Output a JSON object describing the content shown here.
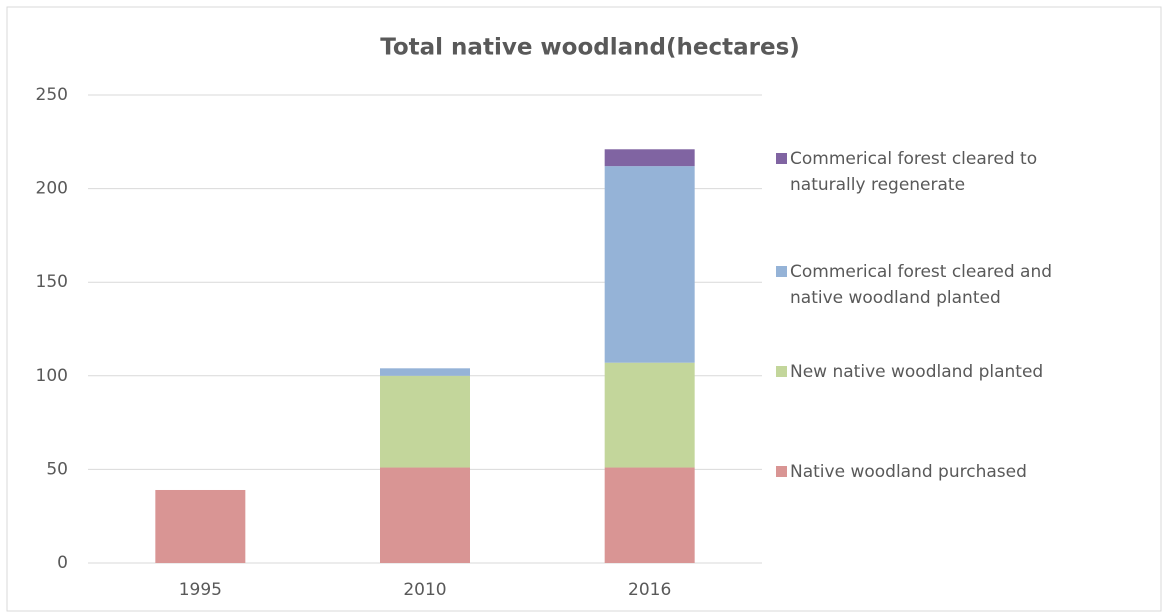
{
  "chart_data": {
    "type": "stacked_bar",
    "title": "Total native woodland(hectares)",
    "categories": [
      "1995",
      "2010",
      "2016"
    ],
    "series": [
      {
        "name": "Native woodland purchased",
        "color": "#d99594",
        "values": [
          39,
          51,
          51
        ]
      },
      {
        "name": "New native woodland planted",
        "color": "#c3d69b",
        "values": [
          0,
          49,
          56
        ]
      },
      {
        "name": "Commerical forest cleared and native woodland planted",
        "color": "#95b3d7",
        "values": [
          0,
          4,
          105
        ]
      },
      {
        "name": "Commerical forest cleared to naturally regenerate",
        "color": "#8064a2",
        "values": [
          0,
          0,
          9
        ]
      }
    ],
    "ylim": [
      0,
      250
    ],
    "yticks": [
      0,
      50,
      100,
      150,
      200,
      250
    ],
    "grid": true,
    "legend": "right"
  }
}
